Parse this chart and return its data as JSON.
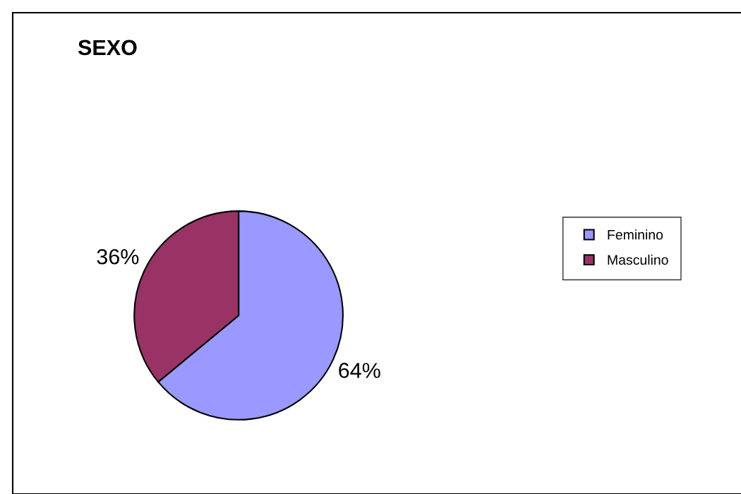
{
  "chart_data": {
    "type": "pie",
    "title": "SEXO",
    "categories": [
      "Feminino",
      "Masculino"
    ],
    "values": [
      64,
      36
    ],
    "value_labels": [
      "64%",
      "36%"
    ],
    "colors": [
      "#9999ff",
      "#993366"
    ],
    "legend": "right"
  }
}
